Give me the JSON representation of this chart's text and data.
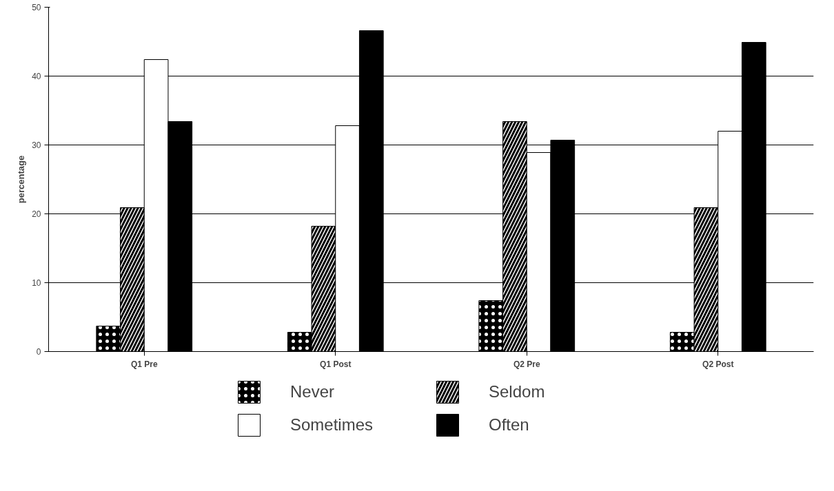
{
  "chart_data": {
    "type": "bar",
    "ylabel": "percentage",
    "categories": [
      "Q1 Pre",
      "Q1 Post",
      "Q2 Pre",
      "Q2 Post"
    ],
    "series": [
      {
        "name": "Never",
        "color": "#000000",
        "values": [
          3.7,
          2.8,
          7.4,
          2.8
        ]
      },
      {
        "name": "Seldom",
        "color": "#000000",
        "values": [
          20.9,
          18.2,
          33.4,
          20.9
        ]
      },
      {
        "name": "Sometimes",
        "color": "#ffffff",
        "values": [
          42.4,
          32.8,
          28.9,
          32.0
        ]
      },
      {
        "name": "Often",
        "color": "#000000",
        "values": [
          33.4,
          46.6,
          30.7,
          44.9
        ]
      }
    ],
    "ylim": [
      0,
      50
    ],
    "yticks": [
      0,
      10,
      20,
      30,
      40,
      50
    ],
    "grid": "y",
    "legend": "bottom"
  }
}
